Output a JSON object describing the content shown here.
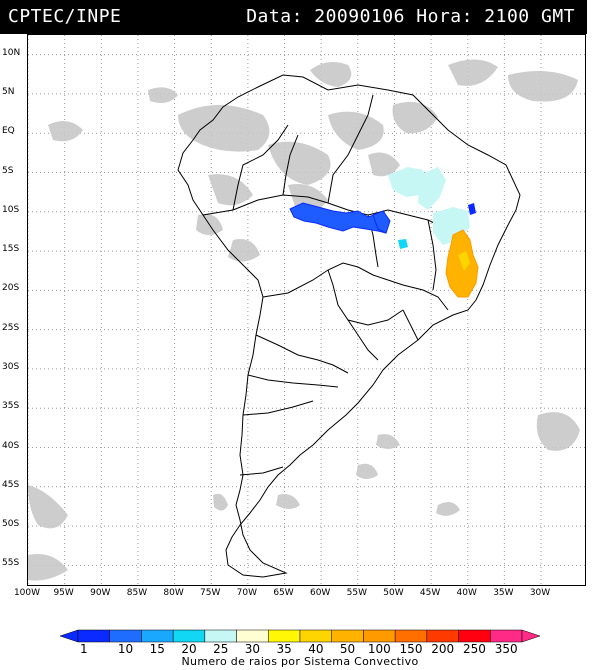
{
  "header": {
    "source": "CPTEC/INPE",
    "datetime": "Data: 20090106 Hora: 2100 GMT"
  },
  "map": {
    "lat_labels": [
      "10N",
      "5N",
      "EQ",
      "5S",
      "10S",
      "15S",
      "20S",
      "25S",
      "30S",
      "35S",
      "40S",
      "45S",
      "50S",
      "55S"
    ],
    "lon_labels": [
      "100W",
      "95W",
      "90W",
      "85W",
      "80W",
      "75W",
      "70W",
      "65W",
      "60W",
      "55W",
      "50W",
      "45W",
      "40W",
      "35W",
      "30W"
    ],
    "background_color": "#ffffff",
    "cloud_color": "#c8c8c8",
    "coast_color": "#000000"
  },
  "colorbar": {
    "labels": [
      "1",
      "10",
      "15",
      "20",
      "25",
      "30",
      "35",
      "40",
      "50",
      "100",
      "150",
      "200",
      "250",
      "350"
    ],
    "colors": [
      "#0a2aff",
      "#1f6dff",
      "#1aa8ff",
      "#11d7f5",
      "#c6f7f4",
      "#fffdd2",
      "#fff705",
      "#ffd500",
      "#ffb300",
      "#ff9a00",
      "#ff6f00",
      "#ff3a00",
      "#ff0010",
      "#ff2a86"
    ],
    "caption": "Numero de raios por Sistema Convectivo"
  },
  "systems": [
    {
      "name": "cluster-amazon-blue",
      "color": "#1f5cff"
    },
    {
      "name": "cluster-northeast-cyan",
      "color": "#c6f7f4"
    },
    {
      "name": "cluster-southeast-orange",
      "color": "#ffb300"
    }
  ]
}
